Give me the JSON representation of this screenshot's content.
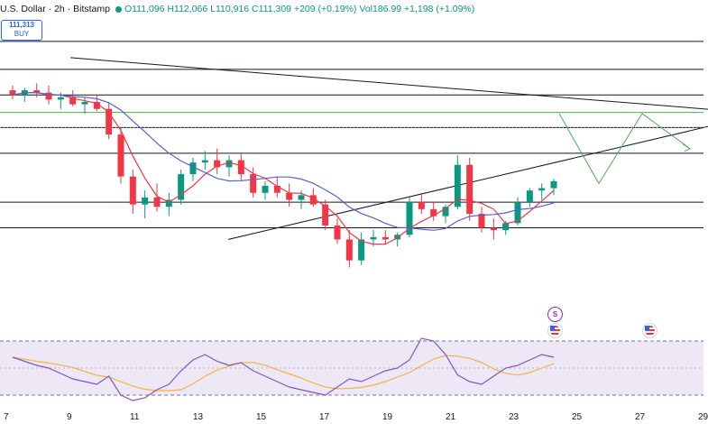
{
  "header": {
    "title": "U.S. Dollar · 2h · Bitstamp",
    "status_dot_color": "#089981",
    "ohlc": "O111,096 H112,066 L110,916 C111,309 +209 (+0.19%)",
    "volume": "Vol186.99 +1,198 (+1.09%)"
  },
  "trade_box": {
    "price": "111,313",
    "label": "BUY"
  },
  "colors": {
    "up": "#089981",
    "down": "#f23645",
    "ma_fast": "#f23645",
    "ma_slow": "#5b5fd6",
    "rsi_line": "#7e57c2",
    "rsi_ma": "#f5b342",
    "rsi_band": "#ede7f6",
    "projection": "#4caf50",
    "level_green": "#4caf50",
    "level": "#131722"
  },
  "x_axis": {
    "ticks": [
      "7",
      "9",
      "11",
      "13",
      "15",
      "17",
      "19",
      "21",
      "23",
      "25",
      "27",
      "29"
    ]
  },
  "events": [
    {
      "icon": "split-icon",
      "text": "S"
    },
    {
      "icon": "us-flag-icon",
      "text": ""
    },
    {
      "icon": "us-flag-icon",
      "text": ""
    }
  ],
  "chart_data": {
    "type": "candlestick",
    "price_candles_approx": [
      [
        112900,
        113100,
        112500,
        112700
      ],
      [
        112700,
        113000,
        112400,
        112900
      ],
      [
        112900,
        113200,
        112600,
        112800
      ],
      [
        112800,
        113100,
        112300,
        112500
      ],
      [
        112500,
        112800,
        112100,
        112600
      ],
      [
        112600,
        112900,
        112200,
        112300
      ],
      [
        112300,
        112600,
        111900,
        112400
      ],
      [
        112400,
        112700,
        112000,
        112100
      ],
      [
        112100,
        112400,
        110800,
        111000
      ],
      [
        111000,
        111300,
        108900,
        109200
      ],
      [
        109200,
        109500,
        107600,
        108000
      ],
      [
        108000,
        108600,
        107400,
        108300
      ],
      [
        108300,
        108900,
        107700,
        107900
      ],
      [
        107900,
        108500,
        107500,
        108200
      ],
      [
        108200,
        109500,
        108000,
        109300
      ],
      [
        109300,
        110000,
        109000,
        109800
      ],
      [
        109800,
        110300,
        109500,
        109900
      ],
      [
        109900,
        110400,
        109300,
        109600
      ],
      [
        109600,
        110100,
        109200,
        109900
      ],
      [
        109900,
        110200,
        109000,
        109300
      ],
      [
        109300,
        109600,
        108300,
        108500
      ],
      [
        108500,
        109000,
        108200,
        108800
      ],
      [
        108800,
        109200,
        108300,
        108500
      ],
      [
        108500,
        108900,
        107900,
        108200
      ],
      [
        108200,
        108600,
        107800,
        108400
      ],
      [
        108400,
        108700,
        107900,
        108000
      ],
      [
        108000,
        108200,
        106900,
        107100
      ],
      [
        107100,
        107400,
        106300,
        106500
      ],
      [
        106500,
        106900,
        105300,
        105600
      ],
      [
        105600,
        106800,
        105400,
        106500
      ],
      [
        106500,
        106900,
        106200,
        106600
      ],
      [
        106600,
        106900,
        106300,
        106500
      ],
      [
        106500,
        106800,
        106200,
        106700
      ],
      [
        106700,
        108300,
        106600,
        108100
      ],
      [
        108100,
        108500,
        107600,
        107800
      ],
      [
        107800,
        108100,
        107300,
        107500
      ],
      [
        107500,
        108000,
        107200,
        107900
      ],
      [
        107900,
        110100,
        107800,
        109700
      ],
      [
        109700,
        110000,
        107300,
        107600
      ],
      [
        107600,
        107900,
        106800,
        107000
      ],
      [
        107000,
        107400,
        106500,
        106900
      ],
      [
        106900,
        107300,
        106700,
        107200
      ],
      [
        107200,
        108300,
        107100,
        108100
      ],
      [
        108100,
        108700,
        107900,
        108600
      ],
      [
        108600,
        108900,
        108200,
        108700
      ],
      [
        108700,
        109100,
        108400,
        109000
      ]
    ],
    "levels": [
      115000,
      113800,
      112700,
      111950,
      111300,
      110200,
      108100,
      107000
    ],
    "triangle": {
      "upper": [
        [
          "2025-08-09",
          114300
        ],
        [
          "2025-08-30",
          112000
        ]
      ],
      "lower": [
        [
          "2025-08-14",
          106500
        ],
        [
          "2025-08-30",
          111600
        ]
      ]
    },
    "projection_path": [
      111900,
      108900,
      111900,
      110400
    ],
    "rsi": {
      "upper": 70,
      "lower": 30,
      "values": [
        58,
        55,
        52,
        50,
        46,
        42,
        40,
        38,
        44,
        30,
        26,
        28,
        34,
        38,
        48,
        56,
        60,
        55,
        52,
        54,
        48,
        44,
        40,
        36,
        34,
        32,
        30,
        36,
        42,
        40,
        44,
        48,
        50,
        56,
        72,
        70,
        60,
        45,
        40,
        38,
        44,
        50,
        52,
        56,
        60,
        58
      ]
    }
  }
}
